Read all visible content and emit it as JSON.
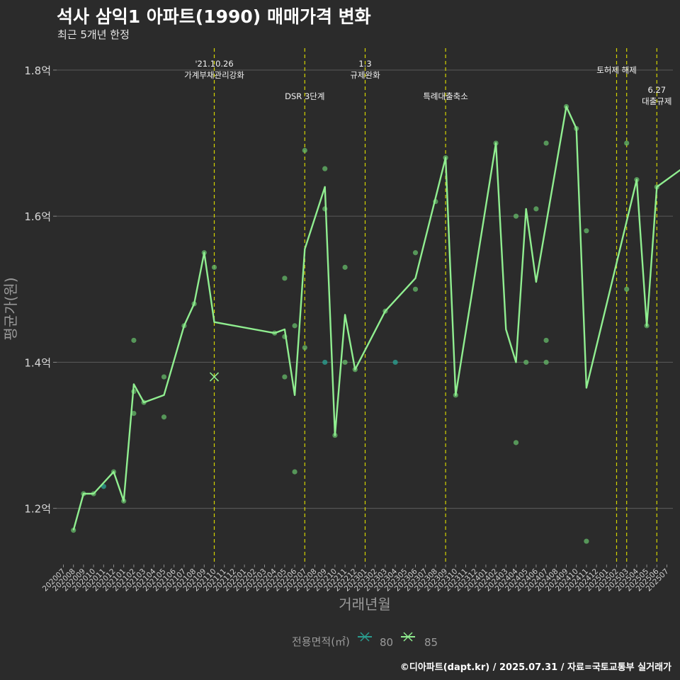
{
  "title": "석사 삼익1 아파트(1990) 매매가격 변화",
  "subtitle": "최근 5개년 한정",
  "caption": "©디아파트(dapt.kr) / 2025.07.31 / 자료=국토교통부 실거래가",
  "colors": {
    "background": "#2b2b2b",
    "grid": "#555555",
    "line": "#90ee90",
    "scatter85": "#66bb6a",
    "scatter80": "#2a9d8f",
    "vline": "#d4d400"
  },
  "chart_data": {
    "type": "line",
    "xlabel": "거래년월",
    "ylabel": "평균가(원)",
    "y_ticks": [
      {
        "value": 1.2,
        "label": "1.2억"
      },
      {
        "value": 1.4,
        "label": "1.4억"
      },
      {
        "value": 1.6,
        "label": "1.6억"
      },
      {
        "value": 1.8,
        "label": "1.8억"
      }
    ],
    "ylim": [
      1.125,
      1.83
    ],
    "categories": [
      "202007",
      "202008",
      "202009",
      "202010",
      "202011",
      "202012",
      "202101",
      "202102",
      "202103",
      "202104",
      "202105",
      "202106",
      "202107",
      "202108",
      "202109",
      "202110",
      "202111",
      "202112",
      "202201",
      "202202",
      "202203",
      "202204",
      "202205",
      "202206",
      "202207",
      "202208",
      "202209",
      "202210",
      "202211",
      "202212",
      "202301",
      "202302",
      "202303",
      "202304",
      "202305",
      "202306",
      "202307",
      "202308",
      "202309",
      "202310",
      "202311",
      "202312",
      "202401",
      "202402",
      "202403",
      "202404",
      "202405",
      "202406",
      "202407",
      "202408",
      "202409",
      "202410",
      "202411",
      "202412",
      "202501",
      "202502",
      "202503",
      "202504",
      "202505",
      "202506",
      "202507"
    ],
    "legend": {
      "title": "전용면적(㎡)",
      "entries": [
        "80",
        "85"
      ]
    },
    "series": [
      {
        "name": "85 평균",
        "points": [
          [
            "202008",
            1.17
          ],
          [
            "202009",
            1.22
          ],
          [
            "202010",
            1.22
          ],
          [
            "202012",
            1.25
          ],
          [
            "202101",
            1.21
          ],
          [
            "202102",
            1.37
          ],
          [
            "202103",
            1.345
          ],
          [
            "202105",
            1.355
          ],
          [
            "202107",
            1.45
          ],
          [
            "202108",
            1.48
          ],
          [
            "202109",
            1.55
          ],
          [
            "202110",
            1.455
          ],
          [
            "202204",
            1.44
          ],
          [
            "202205",
            1.445
          ],
          [
            "202206",
            1.355
          ],
          [
            "202207",
            1.555
          ],
          [
            "202209",
            1.64
          ],
          [
            "202210",
            1.3
          ],
          [
            "202211",
            1.465
          ],
          [
            "202212",
            1.39
          ],
          [
            "202303",
            1.47
          ],
          [
            "202306",
            1.515
          ],
          [
            "202309",
            1.68
          ],
          [
            "202310",
            1.355
          ],
          [
            "202402",
            1.7
          ],
          [
            "202403",
            1.445
          ],
          [
            "202404",
            1.4
          ],
          [
            "202405",
            1.61
          ],
          [
            "202406",
            1.51
          ],
          [
            "202409",
            1.75
          ],
          [
            "202410",
            1.72
          ],
          [
            "202411",
            1.365
          ],
          [
            "202504",
            1.65
          ],
          [
            "202505",
            1.45
          ],
          [
            "202506",
            1.64
          ],
          [
            "202508",
            1.67
          ]
        ]
      }
    ],
    "scatter_85": [
      [
        "202008",
        1.17
      ],
      [
        "202009",
        1.22
      ],
      [
        "202010",
        1.22
      ],
      [
        "202012",
        1.25
      ],
      [
        "202101",
        1.21
      ],
      [
        "202102",
        1.43
      ],
      [
        "202102",
        1.36
      ],
      [
        "202102",
        1.33
      ],
      [
        "202103",
        1.345
      ],
      [
        "202105",
        1.38
      ],
      [
        "202105",
        1.325
      ],
      [
        "202107",
        1.45
      ],
      [
        "202108",
        1.48
      ],
      [
        "202109",
        1.55
      ],
      [
        "202110",
        1.53
      ],
      [
        "202204",
        1.44
      ],
      [
        "202205",
        1.515
      ],
      [
        "202205",
        1.435
      ],
      [
        "202205",
        1.38
      ],
      [
        "202206",
        1.45
      ],
      [
        "202206",
        1.25
      ],
      [
        "202207",
        1.69
      ],
      [
        "202207",
        1.42
      ],
      [
        "202209",
        1.665
      ],
      [
        "202209",
        1.61
      ],
      [
        "202210",
        1.3
      ],
      [
        "202211",
        1.53
      ],
      [
        "202211",
        1.4
      ],
      [
        "202212",
        1.39
      ],
      [
        "202303",
        1.47
      ],
      [
        "202306",
        1.55
      ],
      [
        "202306",
        1.5
      ],
      [
        "202308",
        1.62
      ],
      [
        "202309",
        1.68
      ],
      [
        "202310",
        1.355
      ],
      [
        "202402",
        1.7
      ],
      [
        "202404",
        1.6
      ],
      [
        "202404",
        1.29
      ],
      [
        "202405",
        1.4
      ],
      [
        "202406",
        1.61
      ],
      [
        "202407",
        1.7
      ],
      [
        "202407",
        1.43
      ],
      [
        "202407",
        1.4
      ],
      [
        "202409",
        1.75
      ],
      [
        "202410",
        1.72
      ],
      [
        "202411",
        1.58
      ],
      [
        "202411",
        1.155
      ],
      [
        "202503",
        1.7
      ],
      [
        "202503",
        1.5
      ],
      [
        "202504",
        1.65
      ],
      [
        "202505",
        1.45
      ],
      [
        "202506",
        1.64
      ],
      [
        "202508",
        1.7
      ],
      [
        "202508",
        1.645
      ]
    ],
    "scatter_80": [
      [
        "202011",
        1.23
      ],
      [
        "202209",
        1.4
      ],
      [
        "202304",
        1.4
      ]
    ],
    "cross_markers": [
      {
        "series": "85",
        "x": "202110",
        "y": 1.38
      }
    ],
    "events": [
      {
        "x": "202110",
        "label": "'21.10.26\n가계부채관리강화",
        "level": 1
      },
      {
        "x": "202207",
        "label": "DSR 3단계",
        "level": 2
      },
      {
        "x": "202301",
        "label": "1.3\n규제완화",
        "level": 1
      },
      {
        "x": "202309",
        "label": "특례대출축소",
        "level": 2
      },
      {
        "x": "202502",
        "label": "토허제 해제",
        "level": 1
      },
      {
        "x": "202503",
        "label": "",
        "level": 1
      },
      {
        "x": "202506",
        "label": "6.27\n대출규제",
        "level": 3
      }
    ]
  }
}
